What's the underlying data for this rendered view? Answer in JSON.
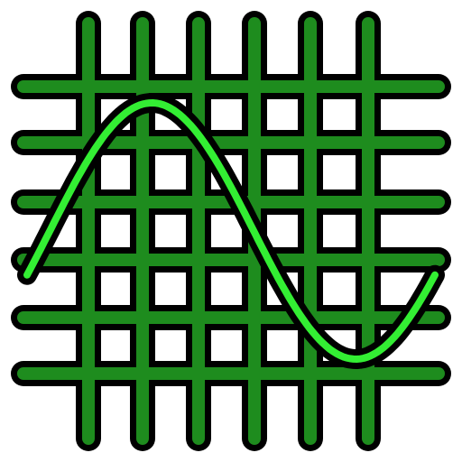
{
  "icon": {
    "name": "oscilloscope-sine-wave-icon",
    "colors": {
      "outline": "#000000",
      "grid": "#1e8c1e",
      "wave": "#33ee33",
      "background": "#ffffff"
    },
    "grid": {
      "vertical_lines": 6,
      "horizontal_lines": 6
    },
    "wave": {
      "shape": "sine",
      "cycles": 1
    }
  }
}
